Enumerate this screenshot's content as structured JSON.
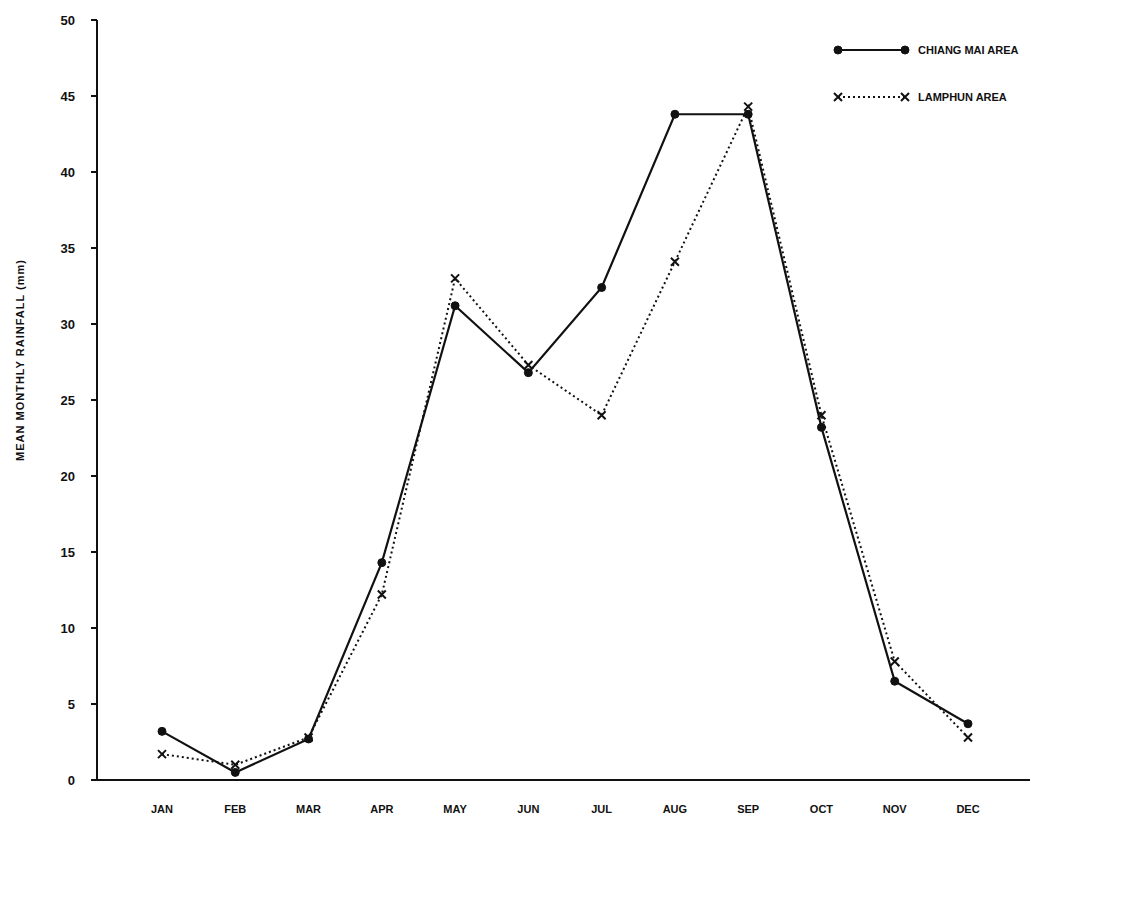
{
  "chart_data": {
    "type": "line",
    "y_label": "MEAN MONTHLY RAINFALL (mm)",
    "categories": [
      "JAN",
      "FEB",
      "MAR",
      "APR",
      "MAY",
      "JUN",
      "JUL",
      "AUG",
      "SEP",
      "OCT",
      "NOV",
      "DEC"
    ],
    "series": [
      {
        "name": "CHIANG MAI AREA",
        "color": "#111111",
        "marker": "circle",
        "line_style": "solid",
        "values": [
          3.2,
          0.5,
          2.7,
          14.3,
          31.2,
          26.8,
          32.4,
          43.8,
          43.8,
          23.2,
          6.5,
          3.7
        ]
      },
      {
        "name": "LAMPHUN AREA",
        "color": "#111111",
        "marker": "x",
        "line_style": "dotted",
        "values": [
          1.7,
          1.0,
          2.8,
          12.2,
          33.0,
          27.3,
          24.0,
          34.1,
          44.3,
          24.0,
          7.8,
          2.8
        ]
      }
    ],
    "ylim": [
      0,
      50
    ],
    "yticks": [
      0,
      5,
      10,
      15,
      20,
      25,
      30,
      35,
      40,
      45,
      50
    ],
    "grid": false,
    "legend": "top-right"
  }
}
